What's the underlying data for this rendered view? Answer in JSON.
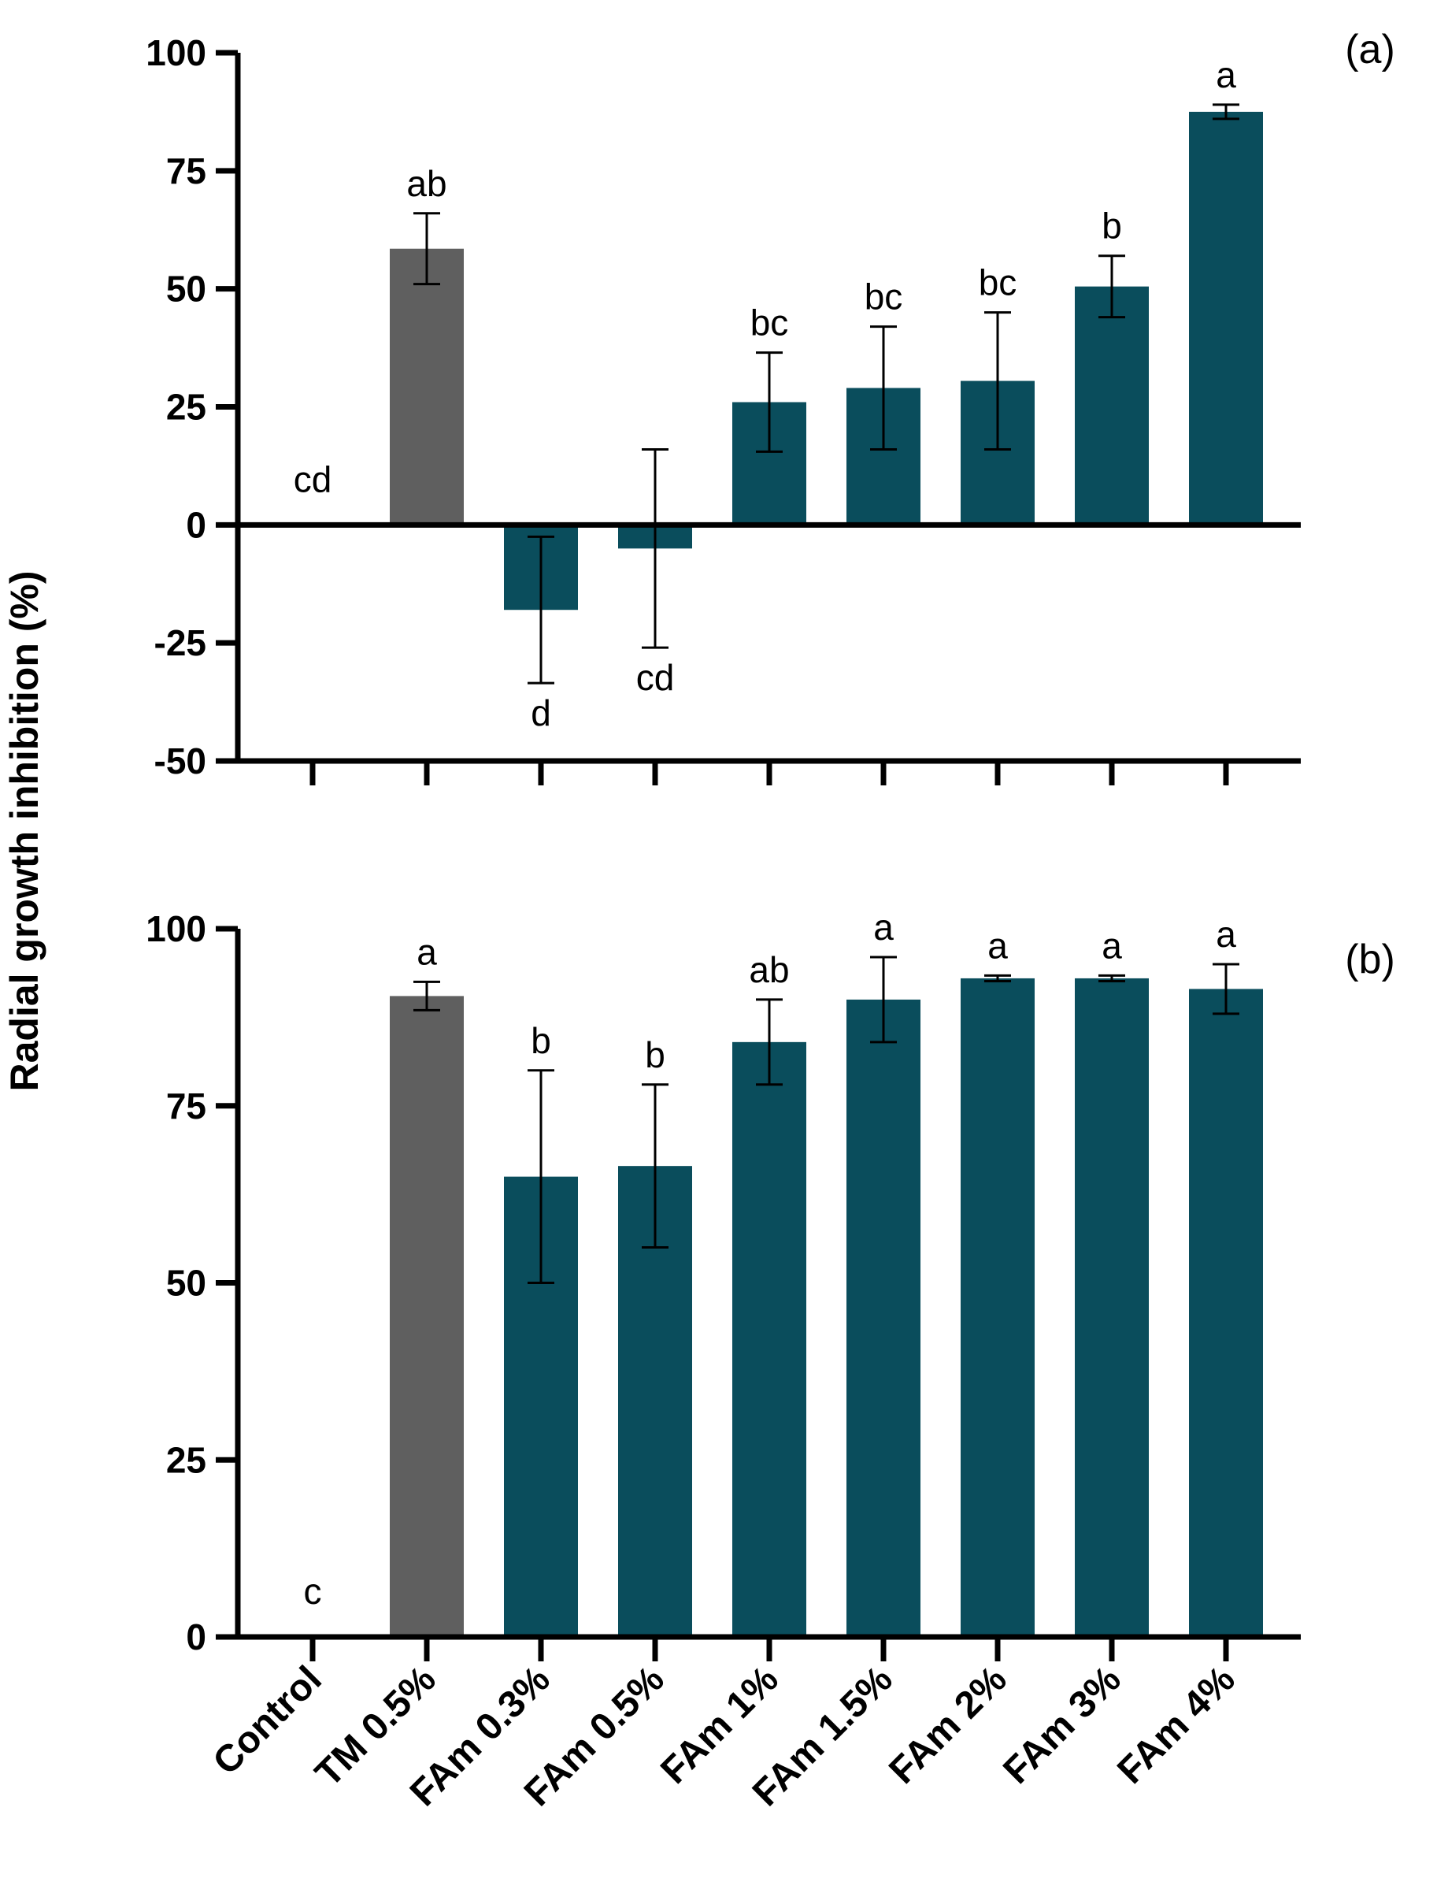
{
  "chart_data": {
    "type": "bar",
    "ylabel": "Radial growth inhibition (%)",
    "categories": [
      "Control",
      "TM 0.5%",
      "FAm 0.3%",
      "FAm 0.5%",
      "FAm 1%",
      "FAm 1.5%",
      "FAm 2%",
      "FAm 3%",
      "FAm 4%"
    ],
    "colors": {
      "control_bar": "#5f5f5f",
      "treatment_bar": "#0a4d5c",
      "axis": "#000000"
    },
    "panels": [
      {
        "label": "(a)",
        "ylim": [
          -50,
          100
        ],
        "yticks": [
          100,
          75,
          50,
          25,
          0,
          -25,
          -50
        ],
        "ytick_labels": [
          "100",
          "75",
          "50",
          "25",
          "0",
          "-25",
          "-50"
        ],
        "values": [
          0,
          58.5,
          -18,
          -5,
          26,
          29,
          30.5,
          50.5,
          87.5
        ],
        "errors": [
          0,
          7.5,
          15.5,
          21,
          10.5,
          13,
          14.5,
          6.5,
          1.5
        ],
        "significance": [
          "cd",
          "ab",
          "d",
          "cd",
          "bc",
          "bc",
          "bc",
          "b",
          "a"
        ]
      },
      {
        "label": "(b)",
        "ylim": [
          0,
          100
        ],
        "yticks": [
          100,
          75,
          50,
          25,
          0
        ],
        "ytick_labels": [
          "100",
          "75",
          "50",
          "25",
          "0"
        ],
        "values": [
          0,
          90.5,
          65,
          66.5,
          84,
          90,
          93,
          93,
          91.5
        ],
        "errors": [
          0,
          2,
          15,
          11.5,
          6,
          6,
          0.4,
          0.4,
          3.5
        ],
        "significance": [
          "c",
          "a",
          "b",
          "b",
          "ab",
          "a",
          "a",
          "a",
          "a"
        ]
      }
    ]
  }
}
